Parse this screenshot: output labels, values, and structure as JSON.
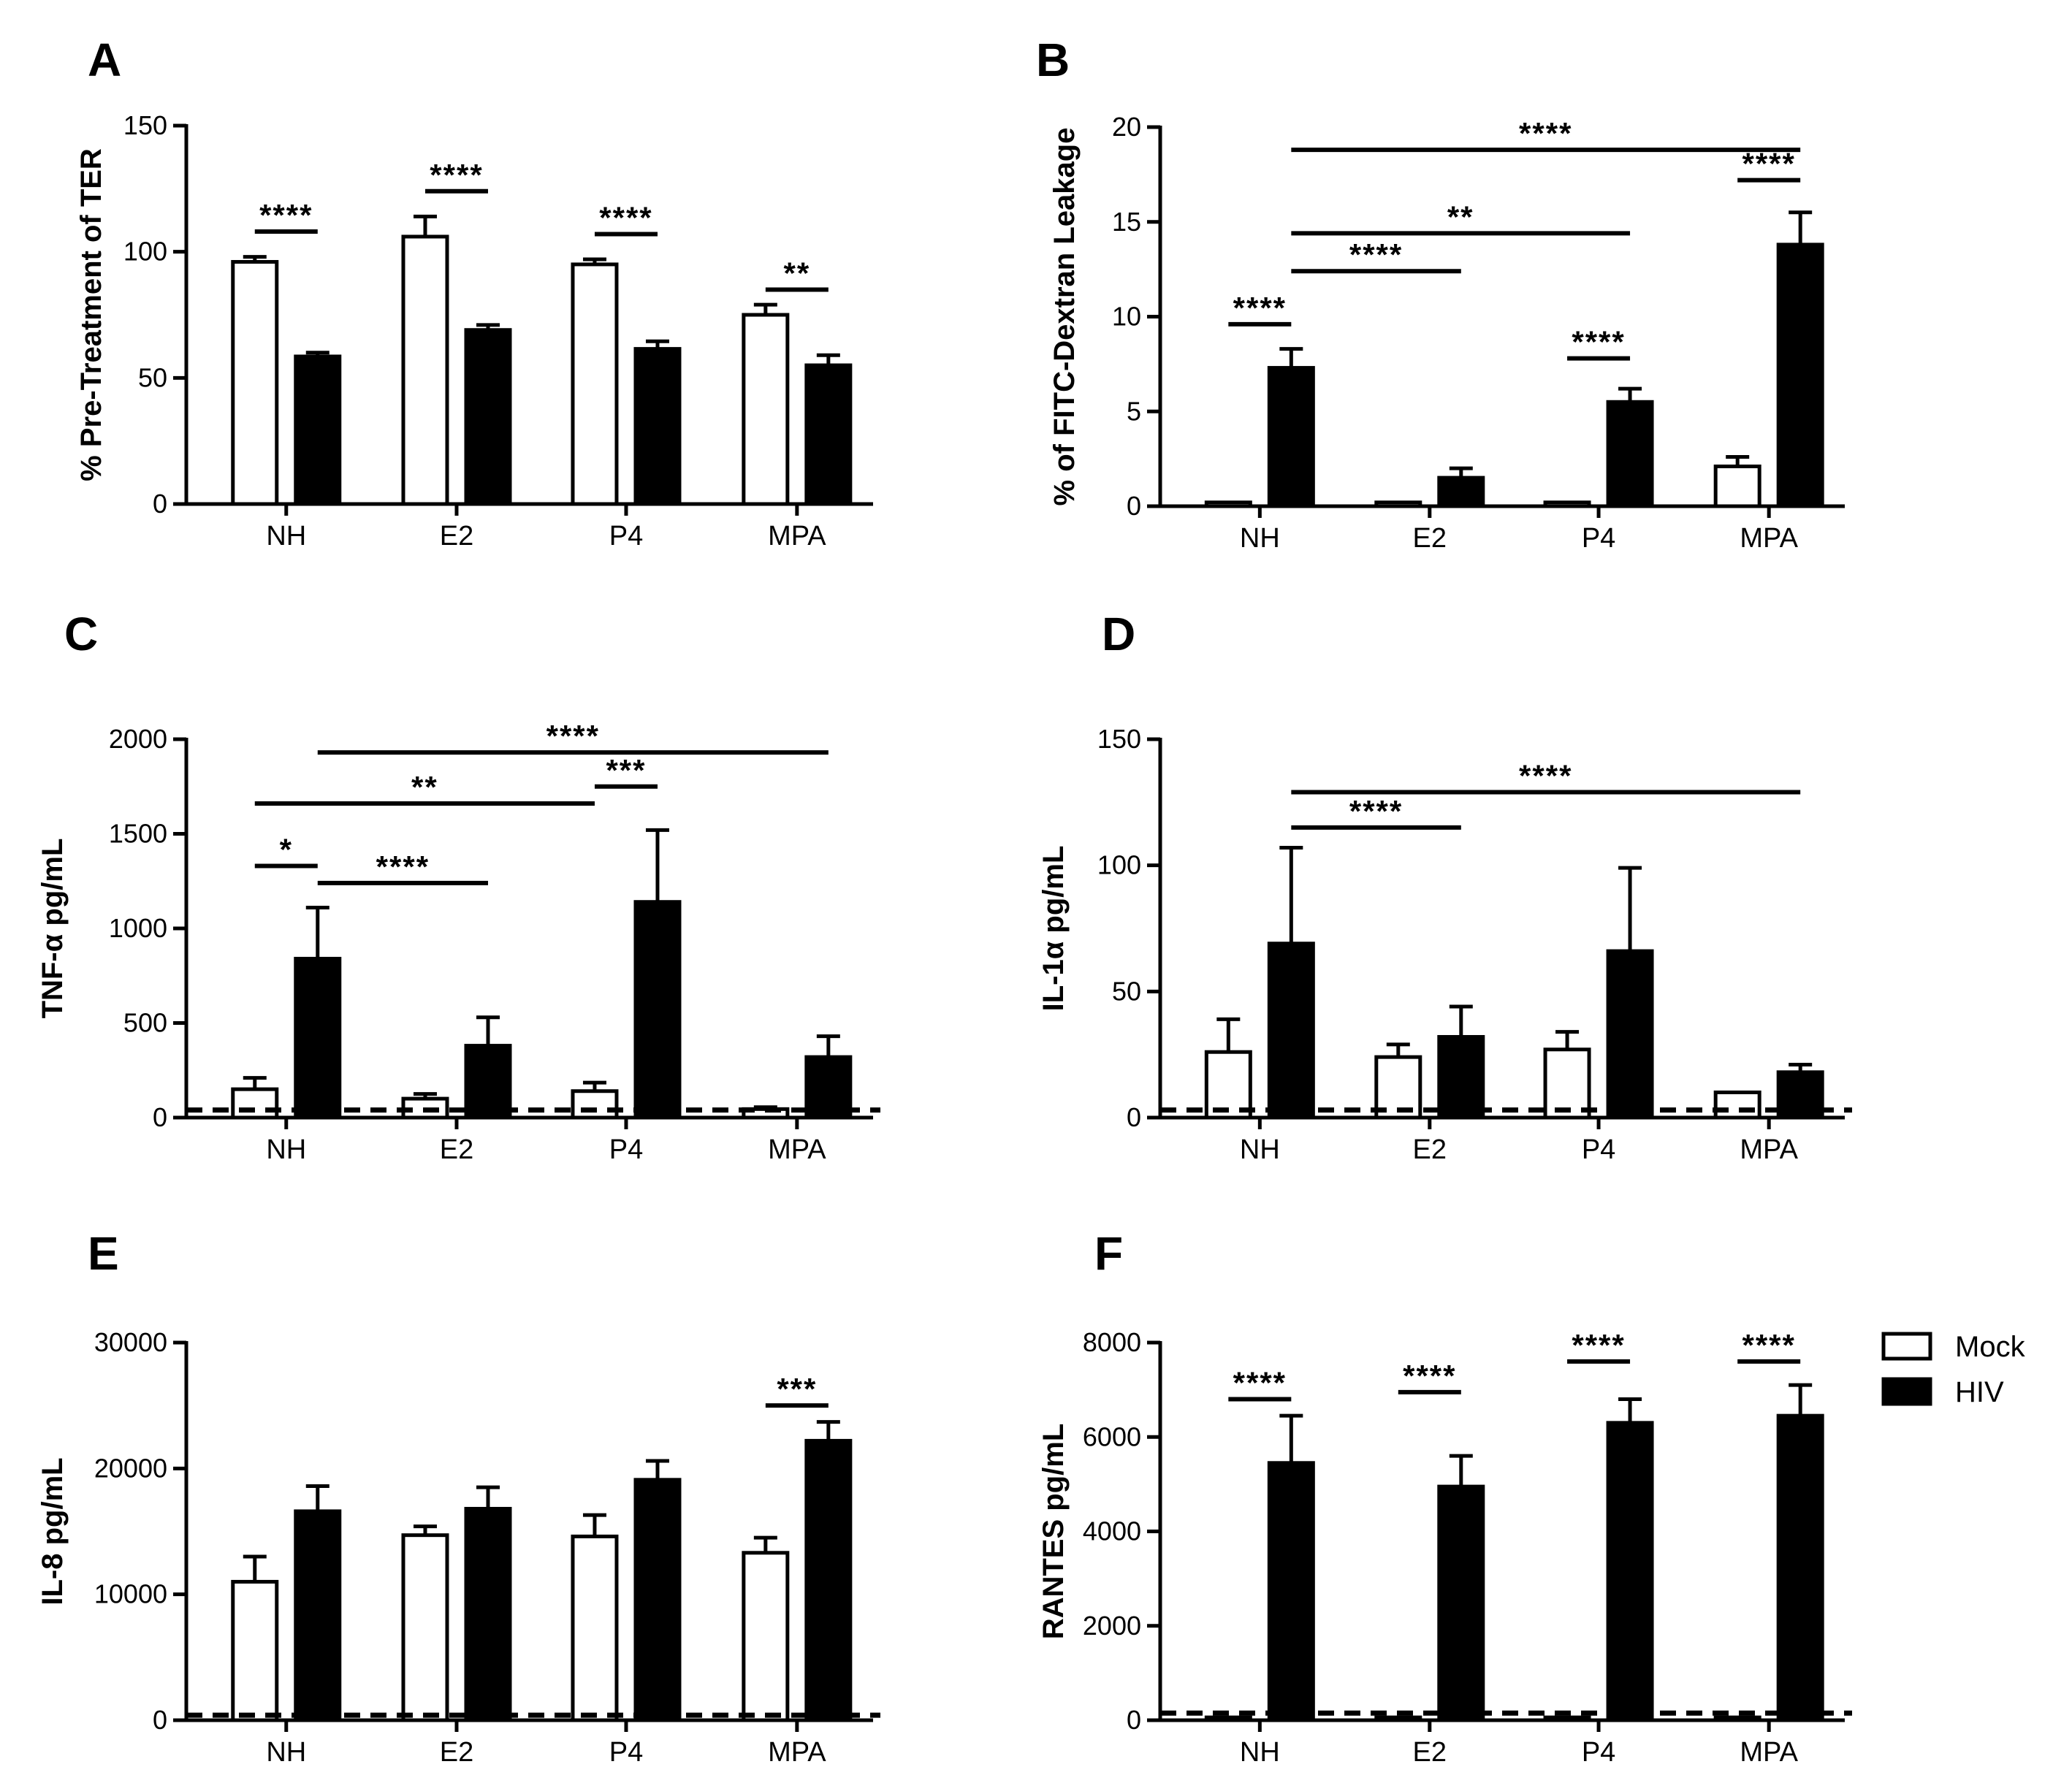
{
  "legend": [
    {
      "label": "Mock",
      "fill": "#ffffff"
    },
    {
      "label": "HIV",
      "fill": "#000000"
    }
  ],
  "chart_data": [
    {
      "panel": "A",
      "type": "bar",
      "ylabel": "% Pre-Treatment of TER",
      "categories": [
        "NH",
        "E2",
        "P4",
        "MPA"
      ],
      "ylim": [
        0,
        150
      ],
      "yticks": [
        0,
        50,
        100,
        150
      ],
      "yticklabels": [
        "0",
        "50",
        "100",
        "150"
      ],
      "series": [
        {
          "name": "Mock",
          "values": [
            96,
            106,
            95,
            75
          ],
          "errors": [
            2,
            8,
            2,
            4
          ]
        },
        {
          "name": "HIV",
          "values": [
            58.5,
            69,
            61.5,
            55
          ],
          "errors": [
            1.5,
            2,
            3,
            4
          ]
        }
      ],
      "detection_limit": null,
      "significance": [
        {
          "label": "****",
          "from": [
            0,
            0
          ],
          "to": [
            0,
            1
          ],
          "y": 108
        },
        {
          "label": "****",
          "from": [
            1,
            0
          ],
          "to": [
            1,
            1
          ],
          "y": 124
        },
        {
          "label": "****",
          "from": [
            2,
            0
          ],
          "to": [
            2,
            1
          ],
          "y": 107
        },
        {
          "label": "**",
          "from": [
            3,
            0
          ],
          "to": [
            3,
            1
          ],
          "y": 85
        }
      ]
    },
    {
      "panel": "B",
      "type": "bar",
      "ylabel": "% of FITC-Dextran Leakage",
      "categories": [
        "NH",
        "E2",
        "P4",
        "MPA"
      ],
      "ylim": [
        0,
        20
      ],
      "yticks": [
        0,
        5,
        10,
        15,
        20
      ],
      "yticklabels": [
        "0",
        "5",
        "10",
        "15",
        "20"
      ],
      "series": [
        {
          "name": "Mock",
          "values": [
            0.2,
            0.2,
            0.2,
            2.1
          ],
          "errors": [
            0,
            0,
            0,
            0.5
          ]
        },
        {
          "name": "HIV",
          "values": [
            7.3,
            1.5,
            5.5,
            13.8
          ],
          "errors": [
            1.0,
            0.5,
            0.7,
            1.7
          ]
        }
      ],
      "detection_limit": null,
      "significance": [
        {
          "label": "****",
          "from": [
            0,
            1
          ],
          "to": [
            3,
            1
          ],
          "y": 18.8
        },
        {
          "label": "****",
          "from": [
            3,
            0
          ],
          "to": [
            3,
            1
          ],
          "y": 17.2
        },
        {
          "label": "**",
          "from": [
            0,
            1
          ],
          "to": [
            2,
            1
          ],
          "y": 14.4
        },
        {
          "label": "****",
          "from": [
            0,
            1
          ],
          "to": [
            1,
            1
          ],
          "y": 12.4
        },
        {
          "label": "****",
          "from": [
            0,
            0
          ],
          "to": [
            0,
            1
          ],
          "y": 9.6
        },
        {
          "label": "****",
          "from": [
            2,
            0
          ],
          "to": [
            2,
            1
          ],
          "y": 7.8
        }
      ]
    },
    {
      "panel": "C",
      "type": "bar",
      "ylabel": "TNF-α pg/mL",
      "categories": [
        "NH",
        "E2",
        "P4",
        "MPA"
      ],
      "ylim": [
        0,
        2000
      ],
      "yticks": [
        0,
        500,
        1000,
        1500,
        2000
      ],
      "yticklabels": [
        "0",
        "500",
        "1000",
        "1500",
        "2000"
      ],
      "series": [
        {
          "name": "Mock",
          "values": [
            150,
            100,
            140,
            45
          ],
          "errors": [
            60,
            25,
            45,
            10
          ]
        },
        {
          "name": "HIV",
          "values": [
            840,
            380,
            1140,
            320
          ],
          "errors": [
            270,
            150,
            380,
            110
          ]
        }
      ],
      "detection_limit": 40,
      "significance": [
        {
          "label": "****",
          "from": [
            0,
            1
          ],
          "to": [
            3,
            1
          ],
          "y": 1930
        },
        {
          "label": "***",
          "from": [
            2,
            0
          ],
          "to": [
            2,
            1
          ],
          "y": 1750
        },
        {
          "label": "**",
          "from": [
            0,
            0
          ],
          "to": [
            2,
            0
          ],
          "y": 1660
        },
        {
          "label": "*",
          "from": [
            0,
            0
          ],
          "to": [
            0,
            1
          ],
          "y": 1330
        },
        {
          "label": "****",
          "from": [
            0,
            1
          ],
          "to": [
            1,
            1
          ],
          "y": 1240
        }
      ]
    },
    {
      "panel": "D",
      "type": "bar",
      "ylabel": "IL-1α pg/mL",
      "categories": [
        "NH",
        "E2",
        "P4",
        "MPA"
      ],
      "ylim": [
        0,
        150
      ],
      "yticks": [
        0,
        50,
        100,
        150
      ],
      "yticklabels": [
        "0",
        "50",
        "100",
        "150"
      ],
      "series": [
        {
          "name": "Mock",
          "values": [
            26,
            24,
            27,
            10
          ],
          "errors": [
            13,
            5,
            7,
            0
          ]
        },
        {
          "name": "HIV",
          "values": [
            69,
            32,
            66,
            18
          ],
          "errors": [
            38,
            12,
            33,
            3
          ]
        }
      ],
      "detection_limit": 3,
      "significance": [
        {
          "label": "****",
          "from": [
            0,
            1
          ],
          "to": [
            3,
            1
          ],
          "y": 129
        },
        {
          "label": "****",
          "from": [
            0,
            1
          ],
          "to": [
            1,
            1
          ],
          "y": 115
        }
      ]
    },
    {
      "panel": "E",
      "type": "bar",
      "ylabel": "IL-8 pg/mL",
      "categories": [
        "NH",
        "E2",
        "P4",
        "MPA"
      ],
      "ylim": [
        0,
        30000
      ],
      "yticks": [
        0,
        10000,
        20000,
        30000
      ],
      "yticklabels": [
        "0",
        "10000",
        "20000",
        "30000"
      ],
      "series": [
        {
          "name": "Mock",
          "values": [
            11000,
            14700,
            14600,
            13300
          ],
          "errors": [
            2000,
            700,
            1700,
            1200
          ]
        },
        {
          "name": "HIV",
          "values": [
            16600,
            16800,
            19100,
            22200
          ],
          "errors": [
            2000,
            1700,
            1500,
            1500
          ]
        }
      ],
      "detection_limit": 400,
      "significance": [
        {
          "label": "***",
          "from": [
            3,
            0
          ],
          "to": [
            3,
            1
          ],
          "y": 25000
        }
      ]
    },
    {
      "panel": "F",
      "type": "bar",
      "ylabel": "RANTES pg/mL",
      "categories": [
        "NH",
        "E2",
        "P4",
        "MPA"
      ],
      "ylim": [
        0,
        8000
      ],
      "yticks": [
        0,
        2000,
        4000,
        6000,
        8000
      ],
      "yticklabels": [
        "0",
        "2000",
        "4000",
        "6000",
        "8000"
      ],
      "series": [
        {
          "name": "Mock",
          "values": [
            60,
            60,
            60,
            60
          ],
          "errors": [
            0,
            0,
            0,
            0
          ]
        },
        {
          "name": "HIV",
          "values": [
            5450,
            4950,
            6300,
            6450
          ],
          "errors": [
            1000,
            650,
            500,
            650
          ]
        }
      ],
      "detection_limit": 150,
      "significance": [
        {
          "label": "****",
          "from": [
            0,
            0
          ],
          "to": [
            0,
            1
          ],
          "y": 6800
        },
        {
          "label": "****",
          "from": [
            1,
            0
          ],
          "to": [
            1,
            1
          ],
          "y": 6950
        },
        {
          "label": "****",
          "from": [
            2,
            0
          ],
          "to": [
            2,
            1
          ],
          "y": 7600
        },
        {
          "label": "****",
          "from": [
            3,
            0
          ],
          "to": [
            3,
            1
          ],
          "y": 7600
        }
      ]
    }
  ]
}
